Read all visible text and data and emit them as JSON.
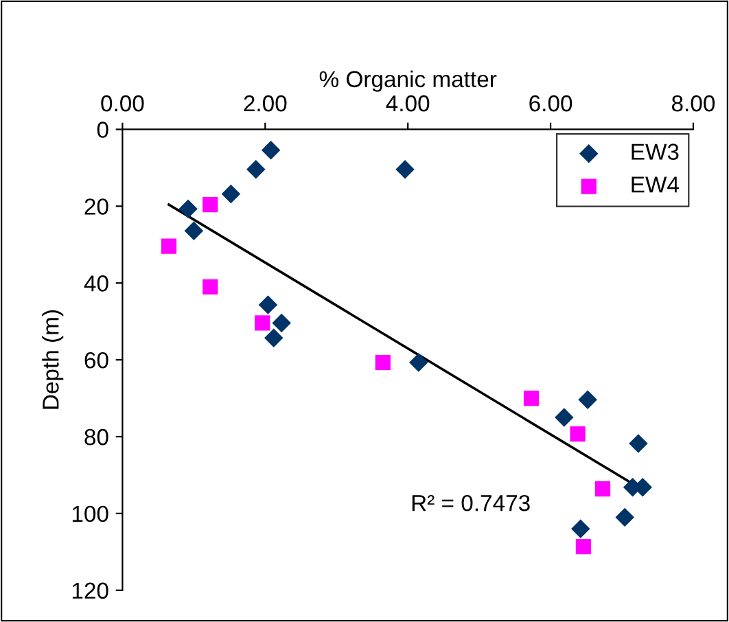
{
  "chart_data": {
    "type": "scatter",
    "xlabel": "% Organic matter",
    "ylabel": "Depth (m)",
    "xlim": [
      0,
      8
    ],
    "xticks": [
      {
        "value": 0,
        "label": "0.00"
      },
      {
        "value": 2,
        "label": "2.00"
      },
      {
        "value": 4,
        "label": "4.00"
      },
      {
        "value": 6,
        "label": "6.00"
      },
      {
        "value": 8,
        "label": "8.00"
      }
    ],
    "ylim": [
      120,
      0
    ],
    "yticks": [
      0,
      20,
      40,
      60,
      80,
      100,
      120
    ],
    "grid": false,
    "legend": "top right",
    "annotations": [
      "R² = 0.7473"
    ],
    "series": [
      {
        "name": "EW3",
        "color": "#003366",
        "marker": "diamond",
        "x": [
          2.08,
          1.87,
          1.52,
          0.92,
          1.0,
          3.96,
          2.04,
          2.23,
          2.12,
          4.15,
          6.52,
          6.19,
          7.23,
          7.15,
          7.29,
          7.04,
          6.42
        ],
        "values": [
          5.4,
          10.4,
          16.8,
          20.7,
          26.4,
          10.4,
          45.7,
          50.4,
          54.3,
          60.7,
          70.4,
          75,
          81.8,
          93.2,
          93.2,
          101,
          104
        ]
      },
      {
        "name": "EW4",
        "color": "#ff00ff",
        "marker": "square",
        "x": [
          1.23,
          0.65,
          1.23,
          1.96,
          3.65,
          5.73,
          6.38,
          6.73,
          6.46
        ],
        "values": [
          19.6,
          30.4,
          41,
          50.4,
          60.7,
          70,
          79.3,
          93.6,
          108.6
        ]
      },
      {
        "type": "line",
        "color": "#000000",
        "marker": "none",
        "line_style": "solid",
        "x": [
          0.65,
          7.27
        ],
        "values": [
          19.6,
          93.6
        ]
      }
    ]
  }
}
